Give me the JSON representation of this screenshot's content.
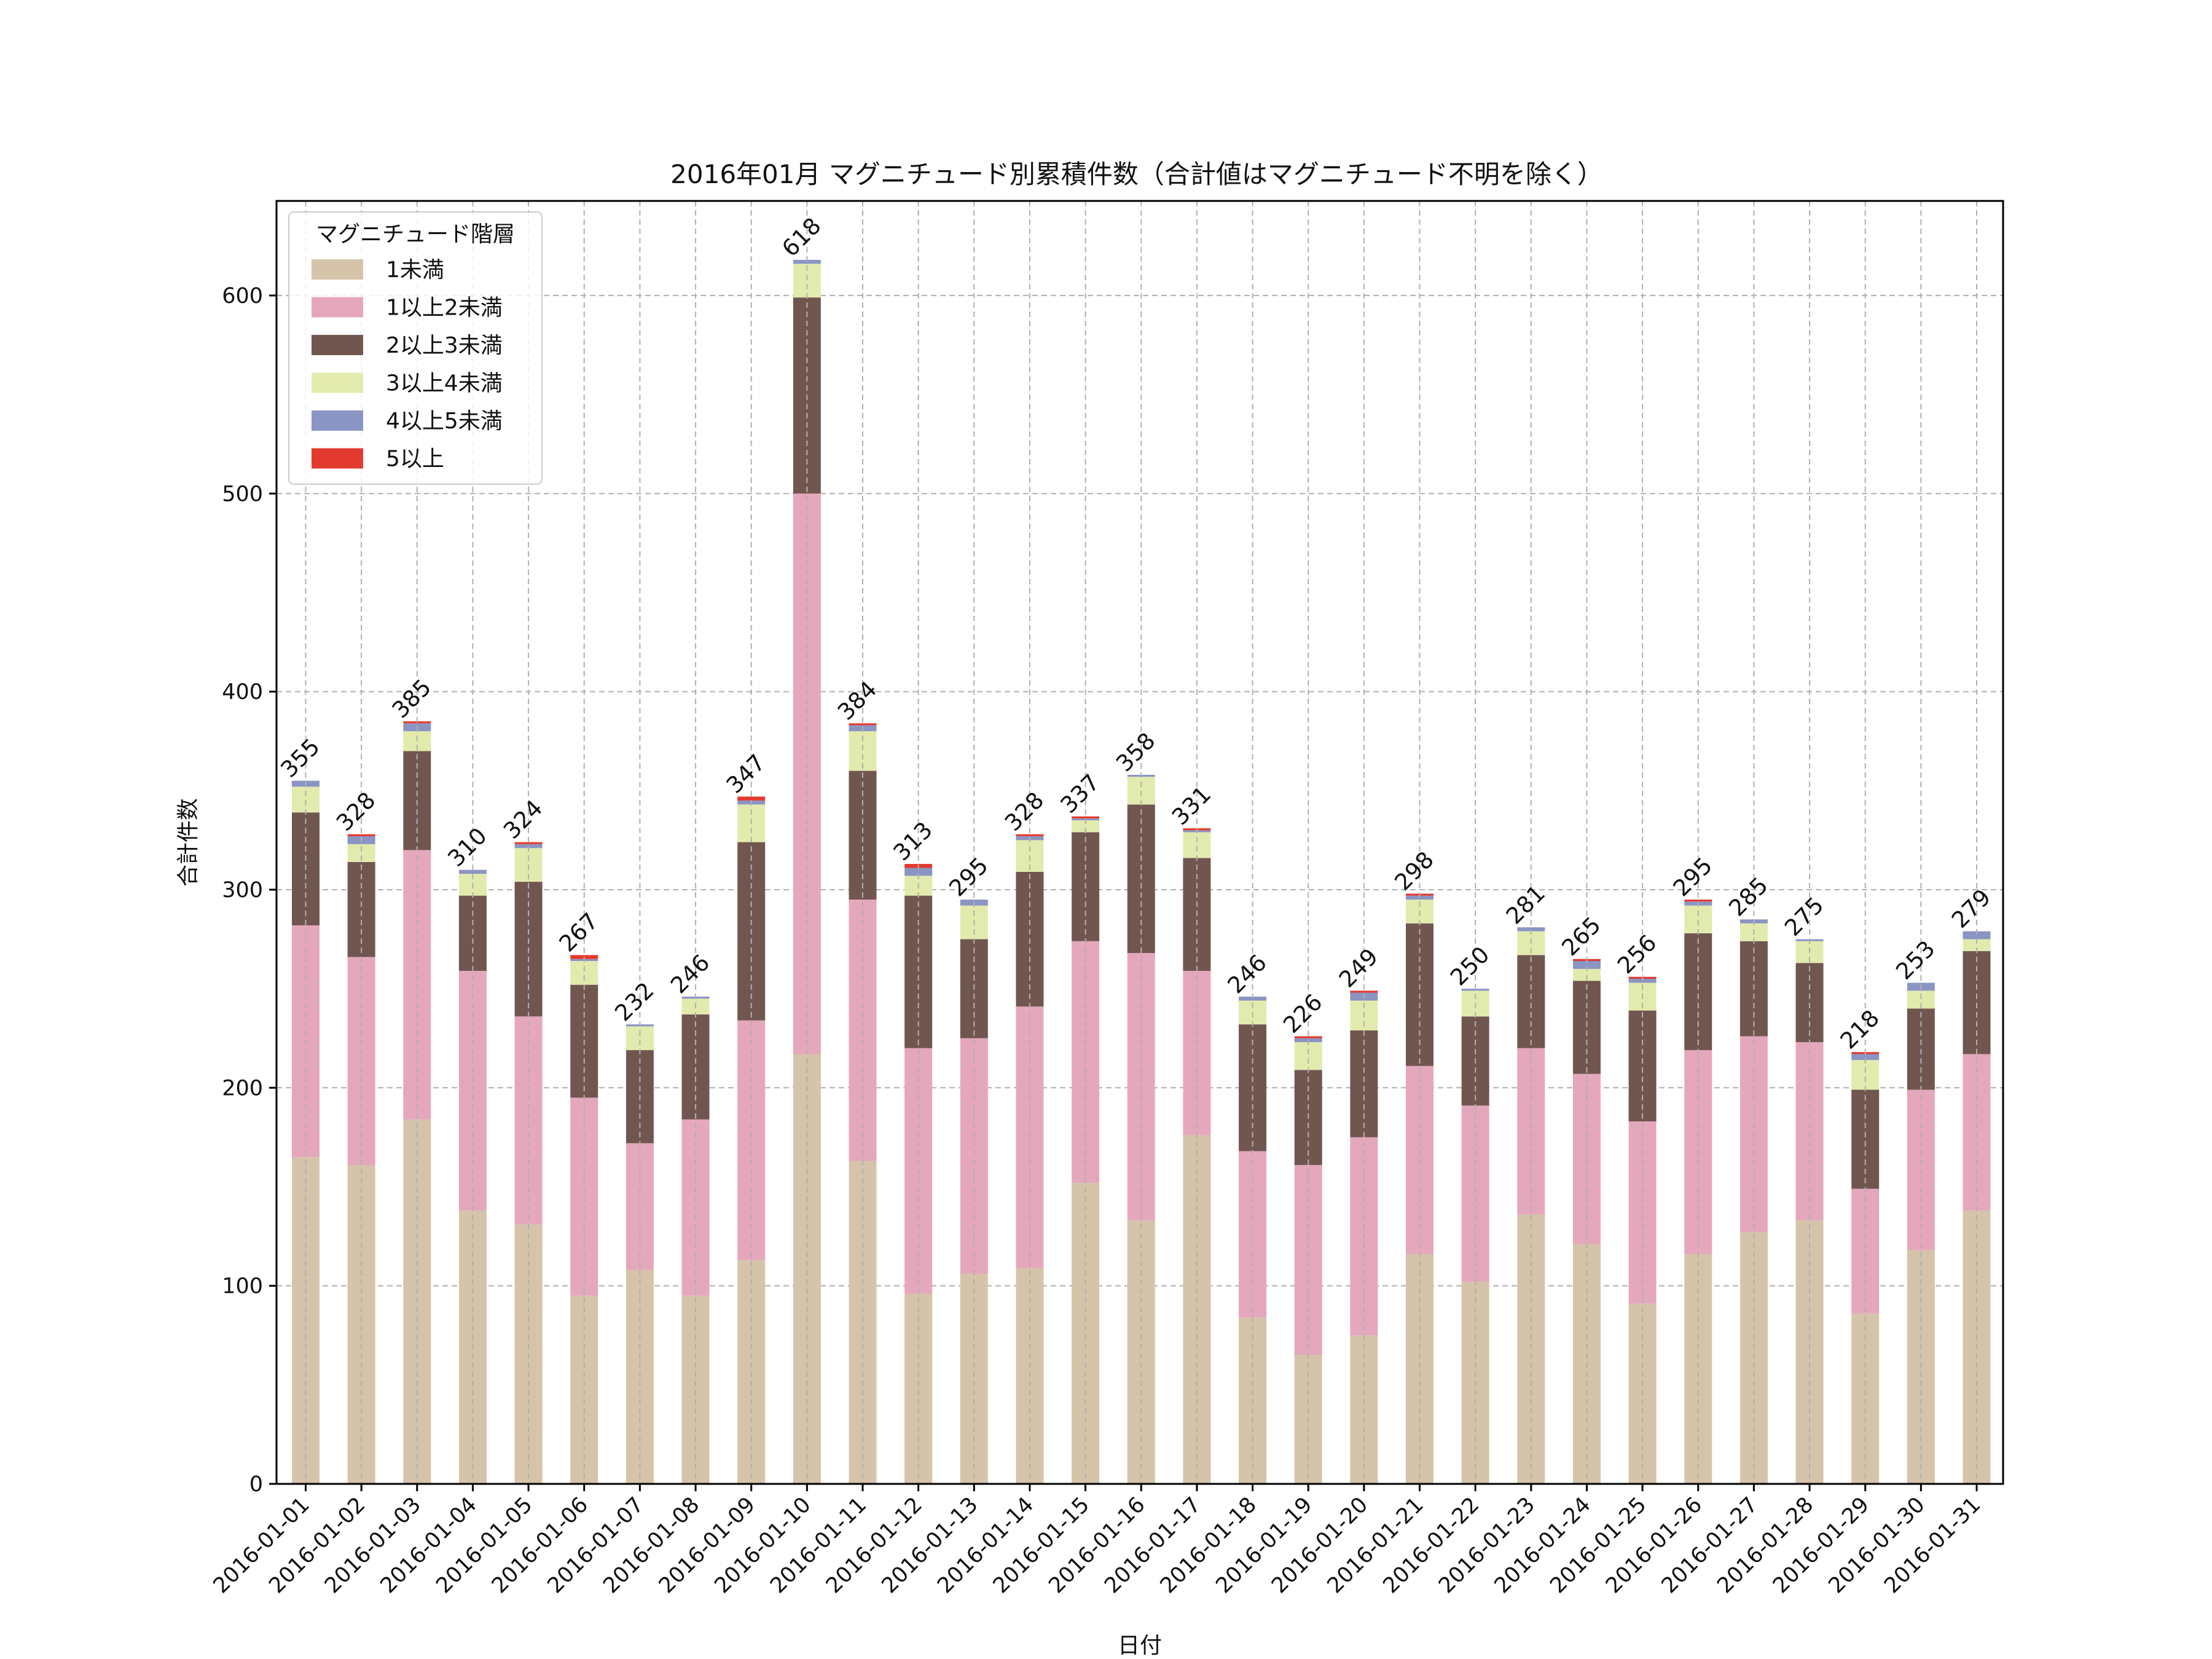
{
  "chart_data": {
    "type": "bar",
    "stacked": true,
    "title": "2016年01月 マグニチュード別累積件数（合計値はマグニチュード不明を除く）",
    "xlabel": "日付",
    "ylabel": "合計件数",
    "ylim": [
      0,
      650
    ],
    "yticks": [
      0,
      100,
      200,
      300,
      400,
      500,
      600
    ],
    "grid": true,
    "legend_title": "マグニチュード階層",
    "legend_position": "upper-left",
    "categories": [
      "2016-01-01",
      "2016-01-02",
      "2016-01-03",
      "2016-01-04",
      "2016-01-05",
      "2016-01-06",
      "2016-01-07",
      "2016-01-08",
      "2016-01-09",
      "2016-01-10",
      "2016-01-11",
      "2016-01-12",
      "2016-01-13",
      "2016-01-14",
      "2016-01-15",
      "2016-01-16",
      "2016-01-17",
      "2016-01-18",
      "2016-01-19",
      "2016-01-20",
      "2016-01-21",
      "2016-01-22",
      "2016-01-23",
      "2016-01-24",
      "2016-01-25",
      "2016-01-26",
      "2016-01-27",
      "2016-01-28",
      "2016-01-29",
      "2016-01-30",
      "2016-01-31"
    ],
    "totals": [
      355,
      328,
      385,
      310,
      324,
      267,
      232,
      246,
      347,
      618,
      384,
      313,
      295,
      328,
      337,
      358,
      331,
      246,
      226,
      249,
      298,
      250,
      281,
      265,
      256,
      295,
      285,
      275,
      218,
      253,
      279
    ],
    "series": [
      {
        "name": "1未満",
        "color": "#d5c4aa",
        "values": [
          165,
          161,
          184,
          138,
          131,
          95,
          108,
          95,
          113,
          217,
          163,
          96,
          106,
          109,
          152,
          133,
          176,
          84,
          65,
          75,
          116,
          102,
          136,
          121,
          91,
          116,
          127,
          133,
          86,
          118,
          138
        ]
      },
      {
        "name": "1以上2未満",
        "color": "#e5a7bc",
        "values": [
          117,
          105,
          136,
          121,
          105,
          100,
          64,
          89,
          121,
          283,
          132,
          124,
          119,
          132,
          122,
          135,
          83,
          84,
          96,
          100,
          95,
          89,
          84,
          86,
          92,
          103,
          99,
          90,
          63,
          81,
          79
        ]
      },
      {
        "name": "2以上3未満",
        "color": "#715650",
        "values": [
          57,
          48,
          50,
          38,
          68,
          57,
          47,
          53,
          90,
          99,
          65,
          77,
          50,
          68,
          55,
          75,
          57,
          64,
          48,
          54,
          72,
          45,
          47,
          47,
          56,
          59,
          48,
          40,
          50,
          41,
          52
        ]
      },
      {
        "name": "3以上4未満",
        "color": "#e2ebad",
        "values": [
          13,
          9,
          10,
          11,
          17,
          12,
          12,
          8,
          19,
          17,
          20,
          10,
          17,
          16,
          6,
          14,
          13,
          12,
          14,
          15,
          12,
          13,
          12,
          6,
          14,
          14,
          9,
          11,
          15,
          9,
          6
        ]
      },
      {
        "name": "4以上5未満",
        "color": "#8b95c3",
        "values": [
          3,
          4,
          4,
          2,
          2,
          1,
          1,
          1,
          2,
          2,
          3,
          4,
          3,
          2,
          1,
          1,
          1,
          2,
          2,
          4,
          2,
          1,
          2,
          4,
          2,
          2,
          2,
          1,
          3,
          4,
          4
        ]
      },
      {
        "name": "5以上",
        "color": "#e33a30",
        "values": [
          0,
          1,
          1,
          0,
          1,
          2,
          0,
          0,
          2,
          0,
          1,
          2,
          0,
          1,
          1,
          0,
          1,
          0,
          1,
          1,
          1,
          0,
          0,
          1,
          1,
          1,
          0,
          0,
          1,
          0,
          0
        ]
      }
    ]
  }
}
